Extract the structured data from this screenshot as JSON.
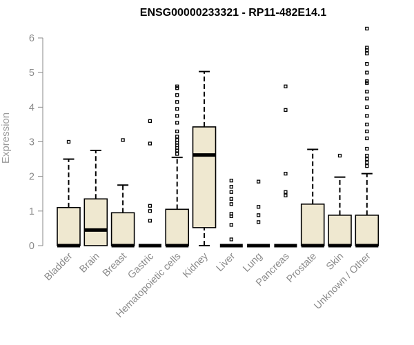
{
  "chart_data": {
    "type": "box",
    "title": "ENSG00000233321 - RP11-482E14.1",
    "xlabel": "",
    "ylabel": "Expression",
    "ylim": [
      0,
      6.2
    ],
    "yticks": [
      0,
      1,
      2,
      3,
      4,
      5,
      6
    ],
    "box_fill": "#efe8d0",
    "box_stroke": "#000000",
    "outlier_stroke": "#000000",
    "axis_color": "#8a8a8a",
    "categories": [
      "Bladder",
      "Brain",
      "Breast",
      "Gastric",
      "Hematopoietic cells",
      "Kidney",
      "Liver",
      "Lung",
      "Pancreas",
      "Prostate",
      "Skin",
      "Unknown / Other"
    ],
    "boxes": [
      {
        "category": "Bladder",
        "whisker_low": 0,
        "q1": 0,
        "median": 0,
        "q3": 1.1,
        "whisker_high": 2.5,
        "outliers": [
          3.0
        ]
      },
      {
        "category": "Brain",
        "whisker_low": 0,
        "q1": 0,
        "median": 0.45,
        "q3": 1.35,
        "whisker_high": 2.75,
        "outliers": []
      },
      {
        "category": "Breast",
        "whisker_low": 0,
        "q1": 0,
        "median": 0,
        "q3": 0.95,
        "whisker_high": 1.75,
        "outliers": [
          3.05
        ]
      },
      {
        "category": "Gastric",
        "whisker_low": 0,
        "q1": 0,
        "median": 0,
        "q3": 0,
        "whisker_high": 0,
        "outliers": [
          0.72,
          1.0,
          1.15,
          2.95,
          3.6
        ]
      },
      {
        "category": "Hematopoietic cells",
        "whisker_low": 0,
        "q1": 0,
        "median": 0,
        "q3": 1.05,
        "whisker_high": 2.55,
        "outliers": [
          2.65,
          2.75,
          2.82,
          2.9,
          2.97,
          3.05,
          3.15,
          3.3,
          3.55,
          3.75,
          3.95,
          4.15,
          4.35,
          4.55,
          4.6
        ]
      },
      {
        "category": "Kidney",
        "whisker_low": 0,
        "q1": 0.52,
        "median": 2.62,
        "q3": 3.43,
        "whisker_high": 5.03,
        "outliers": []
      },
      {
        "category": "Liver",
        "whisker_low": 0,
        "q1": 0,
        "median": 0,
        "q3": 0,
        "whisker_high": 0,
        "outliers": [
          0.18,
          0.6,
          0.85,
          0.92,
          1.2,
          1.35,
          1.55,
          1.7,
          1.88
        ]
      },
      {
        "category": "Lung",
        "whisker_low": 0,
        "q1": 0,
        "median": 0,
        "q3": 0,
        "whisker_high": 0,
        "outliers": [
          0.68,
          0.88,
          1.12,
          1.85
        ]
      },
      {
        "category": "Pancreas",
        "whisker_low": 0,
        "q1": 0,
        "median": 0,
        "q3": 0,
        "whisker_high": 0,
        "outliers": [
          1.45,
          1.55,
          2.08,
          3.92,
          4.6
        ]
      },
      {
        "category": "Prostate",
        "whisker_low": 0,
        "q1": 0,
        "median": 0,
        "q3": 1.2,
        "whisker_high": 2.78,
        "outliers": []
      },
      {
        "category": "Skin",
        "whisker_low": 0,
        "q1": 0,
        "median": 0,
        "q3": 0.88,
        "whisker_high": 1.98,
        "outliers": [
          2.6
        ]
      },
      {
        "category": "Unknown / Other",
        "whisker_low": 0,
        "q1": 0,
        "median": 0,
        "q3": 0.88,
        "whisker_high": 2.08,
        "outliers": [
          2.3,
          2.4,
          2.5,
          2.6,
          2.8,
          3.1,
          3.3,
          3.5,
          3.75,
          4.0,
          4.25,
          4.45,
          4.7,
          4.75,
          5.0,
          5.25,
          5.55,
          5.65,
          5.72,
          6.27
        ]
      }
    ]
  }
}
